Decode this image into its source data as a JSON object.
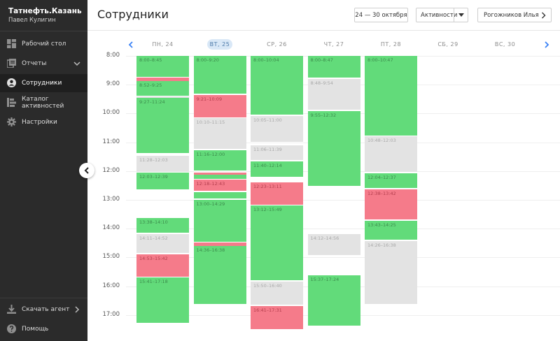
{
  "org": "Татнефть.Казань",
  "user": "Павел Кулигин",
  "nav": [
    {
      "id": "desktop",
      "label": "Рабочий стол",
      "icon": "dashboard-icon",
      "active": false,
      "chevron": false
    },
    {
      "id": "reports",
      "label": "Отчеты",
      "icon": "reports-icon",
      "active": false,
      "chevron": "down"
    },
    {
      "id": "employees",
      "label": "Сотрудники",
      "icon": "user-icon",
      "active": true,
      "chevron": false
    },
    {
      "id": "catalog",
      "label": "Каталог активностей",
      "icon": "catalog-icon",
      "active": false,
      "chevron": false
    },
    {
      "id": "settings",
      "label": "Настройки",
      "icon": "gear-icon",
      "active": false,
      "chevron": false
    }
  ],
  "bottom_nav": [
    {
      "id": "download",
      "label": "Скачать агент",
      "icon": "download-icon",
      "chevron": "right"
    },
    {
      "id": "help",
      "label": "Помощь",
      "icon": "help-icon",
      "chevron": false
    }
  ],
  "header": {
    "title": "Сотрудники",
    "date_range": "24 — 30 октября",
    "activity_select": "Активности",
    "employee_select": "Рогожников Илья"
  },
  "days": [
    "ПН, 24",
    "ВТ, 25",
    "СР, 26",
    "ЧТ, 27",
    "ПТ, 28",
    "СБ, 29",
    "ВС, 30"
  ],
  "today_index": 1,
  "hours": [
    "8:00",
    "9:00",
    "10:00",
    "11:00",
    "12:00",
    "13:00",
    "14:00",
    "15:00",
    "16:00",
    "17:00"
  ],
  "colors": {
    "green": "#62db7a",
    "gray": "#e3e3e3",
    "red": "#f57b8a",
    "sidebar": "#2b2b2b"
  },
  "events": [
    {
      "day": 0,
      "start": "8:00",
      "end": "8:45",
      "type": "green",
      "label": "8:00–8:45"
    },
    {
      "day": 0,
      "start": "8:45",
      "end": "8:52",
      "type": "red",
      "label": ""
    },
    {
      "day": 0,
      "start": "8:52",
      "end": "9:25",
      "type": "green",
      "label": "8:52–9:25"
    },
    {
      "day": 0,
      "start": "9:25",
      "end": "9:27",
      "type": "gray",
      "label": ""
    },
    {
      "day": 0,
      "start": "9:27",
      "end": "11:24",
      "type": "green",
      "label": "9:27–11:24"
    },
    {
      "day": 0,
      "start": "11:28",
      "end": "12:03",
      "type": "gray",
      "label": "11:28–12:03"
    },
    {
      "day": 0,
      "start": "12:03",
      "end": "12:39",
      "type": "green",
      "label": "12:03–12:39"
    },
    {
      "day": 0,
      "start": "13:38",
      "end": "14:10",
      "type": "green",
      "label": "13:38–14:10"
    },
    {
      "day": 0,
      "start": "14:11",
      "end": "14:52",
      "type": "gray",
      "label": "14:11–14:52"
    },
    {
      "day": 0,
      "start": "14:53",
      "end": "15:42",
      "type": "red",
      "label": "14:53–15:42"
    },
    {
      "day": 0,
      "start": "15:41",
      "end": "17:18",
      "type": "green",
      "label": "15:41–17:18"
    },
    {
      "day": 1,
      "start": "8:00",
      "end": "9:20",
      "type": "green",
      "label": "8:00–9:20"
    },
    {
      "day": 1,
      "start": "9:21",
      "end": "10:09",
      "type": "red",
      "label": "9:21–10:09"
    },
    {
      "day": 1,
      "start": "10:10",
      "end": "11:15",
      "type": "gray",
      "label": "10:10–11:15"
    },
    {
      "day": 1,
      "start": "11:16",
      "end": "12:00",
      "type": "green",
      "label": "11:16–12:00"
    },
    {
      "day": 1,
      "start": "12:03",
      "end": "12:08",
      "type": "red",
      "label": ""
    },
    {
      "day": 1,
      "start": "12:08",
      "end": "12:15",
      "type": "green",
      "label": ""
    },
    {
      "day": 1,
      "start": "12:18",
      "end": "12:43",
      "type": "red",
      "label": "12:18–12:43"
    },
    {
      "day": 1,
      "start": "12:44",
      "end": "12:58",
      "type": "green",
      "label": ""
    },
    {
      "day": 1,
      "start": "13:00",
      "end": "14:29",
      "type": "green",
      "label": "13:00–14:29"
    },
    {
      "day": 1,
      "start": "14:29",
      "end": "14:35",
      "type": "red",
      "label": ""
    },
    {
      "day": 1,
      "start": "14:36",
      "end": "16:38",
      "type": "green",
      "label": "14:36–16:38"
    },
    {
      "day": 2,
      "start": "8:00",
      "end": "10:04",
      "type": "green",
      "label": "8:00–10:04"
    },
    {
      "day": 2,
      "start": "10:05",
      "end": "11:00",
      "type": "gray",
      "label": "10:05–11:00"
    },
    {
      "day": 2,
      "start": "11:06",
      "end": "11:39",
      "type": "gray",
      "label": "11:06–11:39"
    },
    {
      "day": 2,
      "start": "11:40",
      "end": "12:14",
      "type": "green",
      "label": "11:40–12:14"
    },
    {
      "day": 2,
      "start": "12:23",
      "end": "13:11",
      "type": "red",
      "label": "12:23–13:11"
    },
    {
      "day": 2,
      "start": "13:12",
      "end": "15:49",
      "type": "green",
      "label": "13:12–15:49"
    },
    {
      "day": 2,
      "start": "15:50",
      "end": "16:40",
      "type": "gray",
      "label": "15:50–16:40"
    },
    {
      "day": 2,
      "start": "16:41",
      "end": "17:31",
      "type": "red",
      "label": "16:41–17:31"
    },
    {
      "day": 3,
      "start": "8:00",
      "end": "8:47",
      "type": "green",
      "label": "8:00–8:47"
    },
    {
      "day": 3,
      "start": "8:48",
      "end": "9:54",
      "type": "gray",
      "label": "8:48–9:54"
    },
    {
      "day": 3,
      "start": "9:55",
      "end": "12:32",
      "type": "green",
      "label": "9:55–12:32"
    },
    {
      "day": 3,
      "start": "14:12",
      "end": "14:56",
      "type": "gray",
      "label": "14:12–14:56"
    },
    {
      "day": 3,
      "start": "15:37",
      "end": "17:24",
      "type": "green",
      "label": "15:37–17:24"
    },
    {
      "day": 4,
      "start": "8:00",
      "end": "10:47",
      "type": "green",
      "label": "8:00–10:47"
    },
    {
      "day": 4,
      "start": "10:48",
      "end": "12:03",
      "type": "gray",
      "label": "10:48–12:03"
    },
    {
      "day": 4,
      "start": "12:04",
      "end": "12:37",
      "type": "green",
      "label": "12:04–12:37"
    },
    {
      "day": 4,
      "start": "12:38",
      "end": "13:42",
      "type": "red",
      "label": "12:38–13:42"
    },
    {
      "day": 4,
      "start": "13:43",
      "end": "14:25",
      "type": "green",
      "label": "13:43–14:25"
    },
    {
      "day": 4,
      "start": "14:26",
      "end": "16:38",
      "type": "gray",
      "label": "14:26–16:38"
    }
  ]
}
